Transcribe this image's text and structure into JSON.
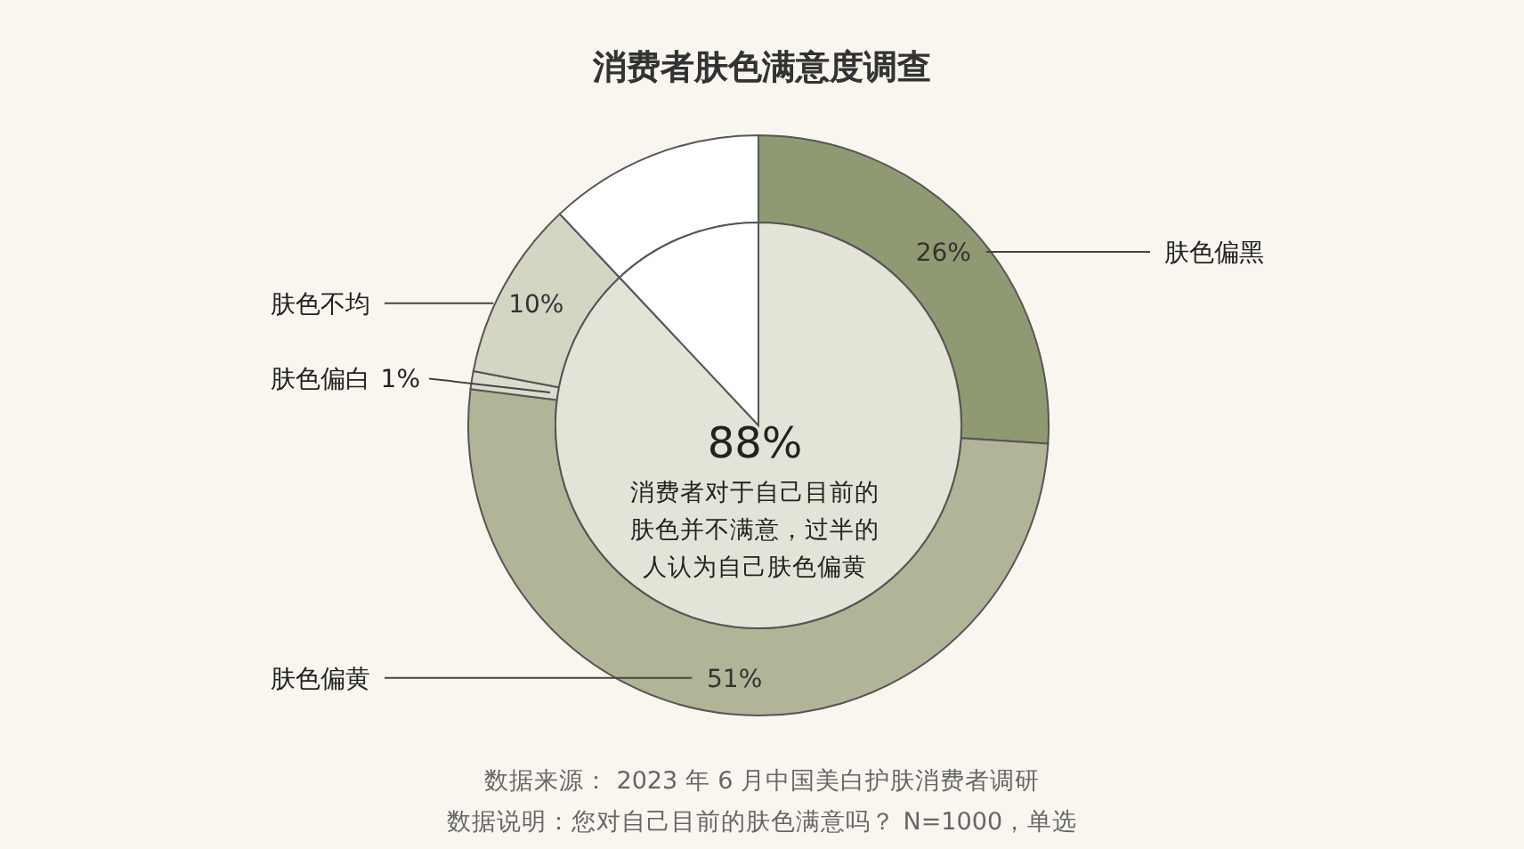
{
  "chart_data": [
    {
      "type": "donut",
      "title": "消费者肤色满意度调查",
      "categories": [
        "肤色偏黑",
        "肤色偏黄",
        "肤色偏白",
        "肤色不均",
        null
      ],
      "values": [
        26,
        51,
        1,
        10,
        12
      ],
      "colors": [
        "#8f9a72",
        "#b2b497",
        "#dcdccd",
        "#d5d5c4",
        "#ffffff"
      ],
      "value_labels": [
        "26%",
        "51%",
        "1%",
        "10%",
        null
      ],
      "annotations": [
        "数据来源： 2023 年 6 月中国美白护肤消费者调研",
        "数据说明：您对自己目前的肤色满意吗？ N=1000，单选"
      ]
    },
    {
      "type": "pie",
      "categories": [
        null,
        null
      ],
      "values": [
        88,
        12
      ],
      "colors": [
        "#e4e3d8",
        "#ffffff"
      ],
      "value_labels": [
        "88%",
        null
      ],
      "annotations": [
        "消费者对于自己目前的肤色并不满意，过半的人认为自己肤色偏黄"
      ]
    }
  ]
}
